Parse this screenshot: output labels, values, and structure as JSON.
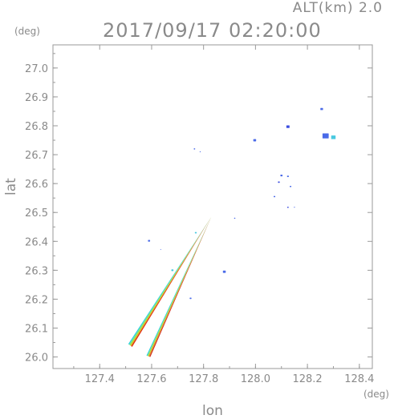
{
  "header": {
    "altitude": "ALT(km) 2.0",
    "datetime": "2017/09/17 02:20:00"
  },
  "chart_data": {
    "type": "radar_map",
    "xlabel": "lon",
    "ylabel": "lat",
    "xunit": "(deg)",
    "yunit": "(deg)",
    "xlim": [
      127.22,
      128.45
    ],
    "ylim": [
      25.96,
      27.08
    ],
    "xticks": [
      127.4,
      127.6,
      127.8,
      128.0,
      128.2,
      128.4
    ],
    "yticks": [
      26.0,
      26.1,
      26.2,
      26.3,
      26.4,
      26.5,
      26.6,
      26.7,
      26.8,
      26.9,
      27.0
    ],
    "xtick_labels": [
      "127.4",
      "127.6",
      "127.8",
      "128.0",
      "128.2",
      "128.4"
    ],
    "ytick_labels": [
      "26.0",
      "26.1",
      "26.2",
      "26.3",
      "26.4",
      "26.5",
      "26.6",
      "26.7",
      "26.8",
      "26.9",
      "27.0"
    ],
    "beams": [
      {
        "apex": [
          127.83,
          26.485
        ],
        "base_a": [
          127.51,
          26.045
        ],
        "base_b": [
          127.525,
          26.035
        ],
        "colors": [
          "#2fd0e0",
          "#7be86a",
          "#d6c21a",
          "#e03010"
        ]
      },
      {
        "apex": [
          127.83,
          26.485
        ],
        "base_a": [
          127.58,
          26.005
        ],
        "base_b": [
          127.595,
          26.0
        ],
        "colors": [
          "#2fd0e0",
          "#9be84a",
          "#e0a020",
          "#d03020"
        ]
      }
    ],
    "echoes": [
      {
        "lon": 128.27,
        "lat": 26.765,
        "size": 3.5,
        "color": "#4a6ae8"
      },
      {
        "lon": 128.3,
        "lat": 26.76,
        "size": 2.5,
        "color": "#49c9e0"
      },
      {
        "lon": 128.255,
        "lat": 26.858,
        "size": 1.5,
        "color": "#4a6ae8"
      },
      {
        "lon": 128.125,
        "lat": 26.797,
        "size": 1.8,
        "color": "#3c4ee0"
      },
      {
        "lon": 127.997,
        "lat": 26.75,
        "size": 1.6,
        "color": "#4a6ae8"
      },
      {
        "lon": 128.1,
        "lat": 26.628,
        "size": 1.2,
        "color": "#4a6ae8"
      },
      {
        "lon": 128.125,
        "lat": 26.625,
        "size": 1.0,
        "color": "#4a6ae8"
      },
      {
        "lon": 128.09,
        "lat": 26.605,
        "size": 1.0,
        "color": "#3c4ee0"
      },
      {
        "lon": 128.135,
        "lat": 26.59,
        "size": 0.9,
        "color": "#4a6ae8"
      },
      {
        "lon": 128.073,
        "lat": 26.555,
        "size": 0.9,
        "color": "#4a6ae8"
      },
      {
        "lon": 128.125,
        "lat": 26.518,
        "size": 0.8,
        "color": "#3c4ee0"
      },
      {
        "lon": 128.15,
        "lat": 26.518,
        "size": 0.6,
        "color": "#4a6ae8"
      },
      {
        "lon": 127.765,
        "lat": 26.72,
        "size": 0.8,
        "color": "#4a6ae8"
      },
      {
        "lon": 127.787,
        "lat": 26.71,
        "size": 0.6,
        "color": "#4a6ae8"
      },
      {
        "lon": 127.92,
        "lat": 26.48,
        "size": 0.7,
        "color": "#4a6ae8"
      },
      {
        "lon": 127.59,
        "lat": 26.402,
        "size": 1.2,
        "color": "#4a6ae8"
      },
      {
        "lon": 127.88,
        "lat": 26.295,
        "size": 1.6,
        "color": "#4a6ae8"
      },
      {
        "lon": 127.75,
        "lat": 26.203,
        "size": 1.0,
        "color": "#4a6ae8"
      },
      {
        "lon": 127.68,
        "lat": 26.3,
        "size": 1.2,
        "color": "#49c9e0"
      },
      {
        "lon": 127.77,
        "lat": 26.43,
        "size": 1.0,
        "color": "#49c9e0"
      },
      {
        "lon": 127.635,
        "lat": 26.372,
        "size": 0.5,
        "color": "#4a6ae8"
      }
    ]
  }
}
